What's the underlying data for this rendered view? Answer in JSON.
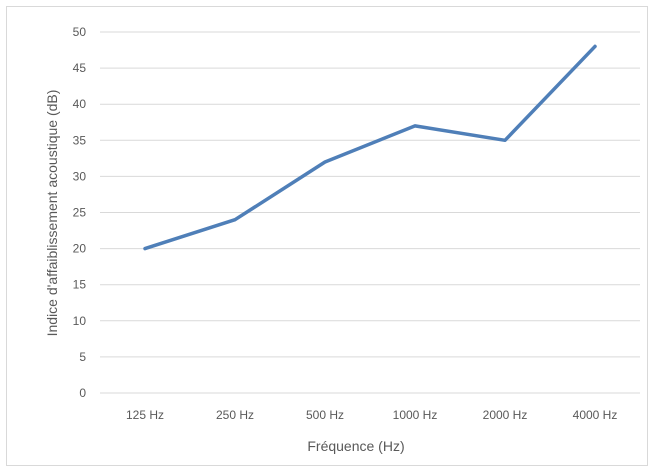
{
  "chart_data": {
    "type": "line",
    "title": "",
    "xlabel": "Fréquence (Hz)",
    "ylabel": "Indice d'affaiblissement acoustique (dB)",
    "categories": [
      "125 Hz",
      "250 Hz",
      "500 Hz",
      "1000 Hz",
      "2000 Hz",
      "4000 Hz"
    ],
    "series": [
      {
        "values": [
          20,
          24,
          32,
          37,
          35,
          48
        ],
        "color": "#4f7fb8"
      }
    ],
    "ylim": [
      0,
      50
    ],
    "yticks": [
      0,
      5,
      10,
      15,
      20,
      25,
      30,
      35,
      40,
      45,
      50
    ],
    "grid": true,
    "legend": "none",
    "colors": {
      "grid": "#d9d9d9",
      "text": "#595959"
    }
  }
}
